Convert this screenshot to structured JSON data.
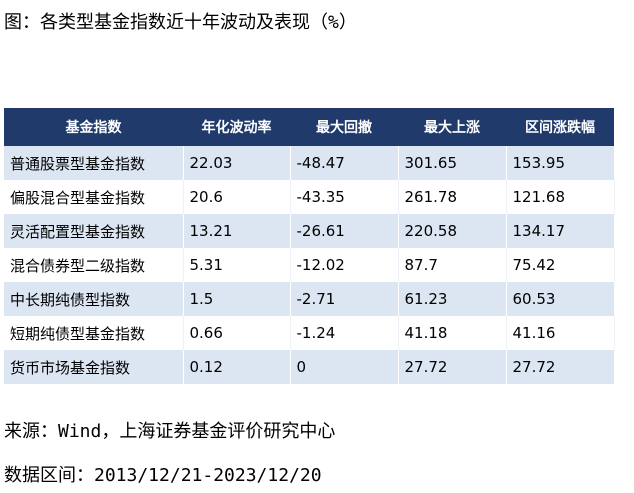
{
  "header": {
    "title": "图：各类型基金指数近十年波动及表现（%）"
  },
  "table": {
    "columns": [
      "基金指数",
      "年化波动率",
      "最大回撤",
      "最大上涨",
      "区间涨跌幅"
    ],
    "rows": [
      [
        "普通股票型基金指数",
        "22.03",
        "-48.47",
        "301.65",
        "153.95"
      ],
      [
        "偏股混合型基金指数",
        "20.6",
        "-43.35",
        "261.78",
        "121.68"
      ],
      [
        "灵活配置型基金指数",
        "13.21",
        "-26.61",
        "220.58",
        "134.17"
      ],
      [
        "混合债券型二级指数",
        "5.31",
        "-12.02",
        "87.7",
        "75.42"
      ],
      [
        "中长期纯债型指数",
        "1.5",
        "-2.71",
        "61.23",
        "60.53"
      ],
      [
        "短期纯债型基金指数",
        "0.66",
        "-1.24",
        "41.18",
        "41.16"
      ],
      [
        "货币市场基金指数",
        "0.12",
        "0",
        "27.72",
        "27.72"
      ]
    ]
  },
  "footer": {
    "source": "来源：Wind，上海证券基金评价研究中心",
    "period": "数据区间：2013/12/21-2023/12/20"
  }
}
